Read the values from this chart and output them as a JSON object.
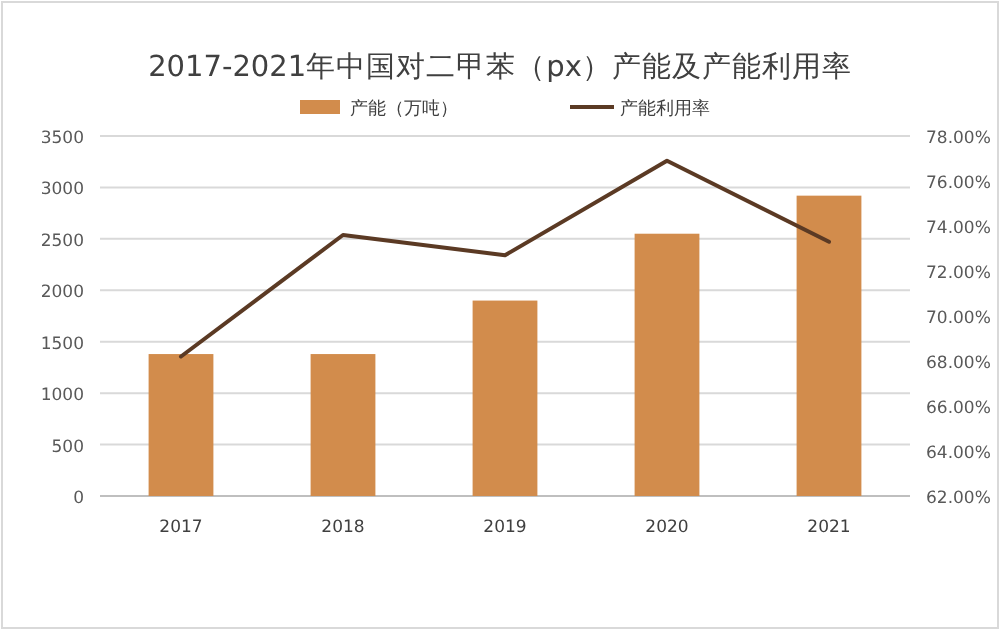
{
  "chart_data": {
    "type": "bar",
    "title": "2017-2021年中国对二甲苯（px）产能及产能利用率",
    "categories": [
      "2017",
      "2018",
      "2019",
      "2020",
      "2021"
    ],
    "series": [
      {
        "name": "产能（万吨）",
        "color": "#d28c4c",
        "values": [
          1380,
          1380,
          1900,
          2550,
          2920
        ]
      },
      {
        "name": "产能利用率",
        "type": "line",
        "axis": "y2",
        "color": "#5b3a24",
        "values": [
          68.2,
          73.6,
          72.7,
          76.9,
          73.3
        ]
      }
    ],
    "ylim": [
      0,
      3500
    ],
    "yticks": [
      0,
      500,
      1000,
      1500,
      2000,
      2500,
      3000,
      3500
    ],
    "y2lim": [
      62,
      78
    ],
    "y2ticks": [
      {
        "value": 62,
        "label": "62.00%"
      },
      {
        "value": 64,
        "label": "64.00%"
      },
      {
        "value": 66,
        "label": "66.00%"
      },
      {
        "value": 68,
        "label": "68.00%"
      },
      {
        "value": 70,
        "label": "70.00%"
      },
      {
        "value": 72,
        "label": "72.00%"
      },
      {
        "value": 74,
        "label": "74.00%"
      },
      {
        "value": 76,
        "label": "76.00%"
      },
      {
        "value": 78,
        "label": "78.00%"
      }
    ],
    "grid": "y",
    "legend": "top",
    "marker": "none"
  }
}
